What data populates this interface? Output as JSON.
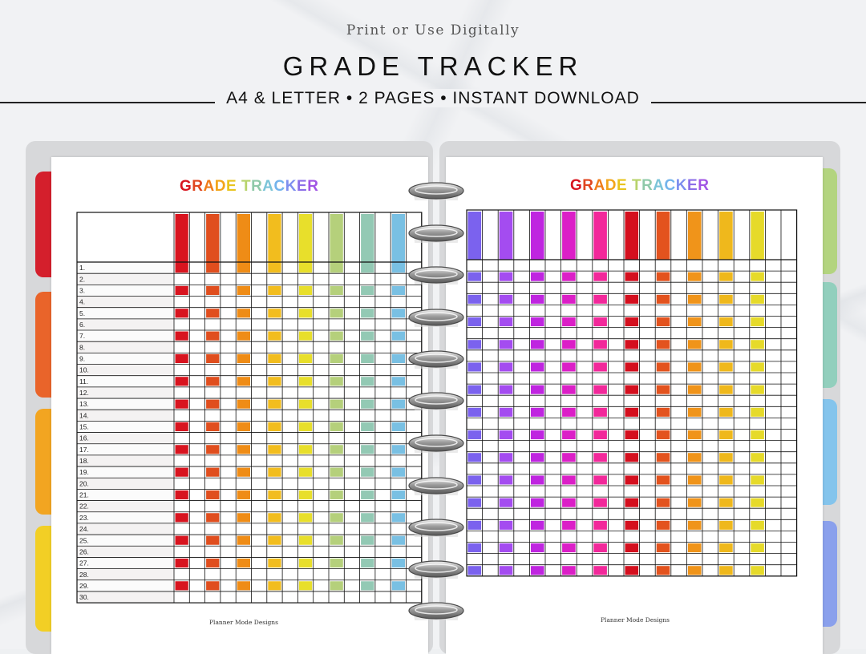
{
  "header": {
    "subtitle": "Print or Use Digitally",
    "title": "GRADE TRACKER",
    "tagline": "A4 & LETTER • 2 PAGES • INSTANT DOWNLOAD"
  },
  "left_page": {
    "title": "GRADE TRACKER",
    "title_letters": [
      "G",
      "R",
      "A",
      "D",
      "E",
      " ",
      "T",
      "R",
      "A",
      "C",
      "K",
      "E",
      "R"
    ],
    "title_colors": [
      "#d8141f",
      "#e04620",
      "#ef7d1a",
      "#f2a51a",
      "#e8c41e",
      "#e6d533",
      "#b7d36b",
      "#8fc9a9",
      "#7bc4d8",
      "#74b4ec",
      "#7e8fef",
      "#8c6fe8",
      "#a155e4"
    ],
    "column_colors": [
      "#d8141f",
      "#e04e1e",
      "#ef8c16",
      "#f2bd1e",
      "#e8df2b",
      "#b5d07b",
      "#93c9b4",
      "#79c0e3"
    ],
    "row_labels": [
      "1.",
      "2.",
      "3.",
      "4.",
      "5.",
      "6.",
      "7.",
      "8.",
      "9.",
      "10.",
      "11.",
      "12.",
      "13.",
      "14.",
      "15.",
      "16.",
      "17.",
      "18.",
      "19.",
      "20.",
      "21.",
      "22.",
      "23.",
      "24.",
      "25.",
      "26.",
      "27.",
      "28.",
      "29.",
      "30."
    ],
    "footer": "Planner Mode Designs"
  },
  "right_page": {
    "title": "GRADE TRACKER",
    "title_letters": [
      "G",
      "R",
      "A",
      "D",
      "E",
      " ",
      "T",
      "R",
      "A",
      "C",
      "K",
      "E",
      "R"
    ],
    "title_colors": [
      "#d8141f",
      "#e04620",
      "#ef7d1a",
      "#f2a51a",
      "#e8c41e",
      "#e6d533",
      "#b7d36b",
      "#8fc9a9",
      "#7bc4d8",
      "#74b4ec",
      "#7e8fef",
      "#8c6fe8",
      "#a155e4"
    ],
    "column_colors": [
      "#7b62ee",
      "#a44cf0",
      "#bf25e0",
      "#db1fc7",
      "#f2289a",
      "#d40f1e",
      "#e3531e",
      "#f0941a",
      "#efb81c",
      "#e6da2a"
    ],
    "footer": "Planner Mode Designs"
  },
  "tabs": {
    "left": [
      "#d41f2c",
      "#e9642a",
      "#f2a521",
      "#f2cf25"
    ],
    "right": [
      "#b3d47f",
      "#92cfbd",
      "#84c4ec",
      "#8aa0ec"
    ]
  }
}
